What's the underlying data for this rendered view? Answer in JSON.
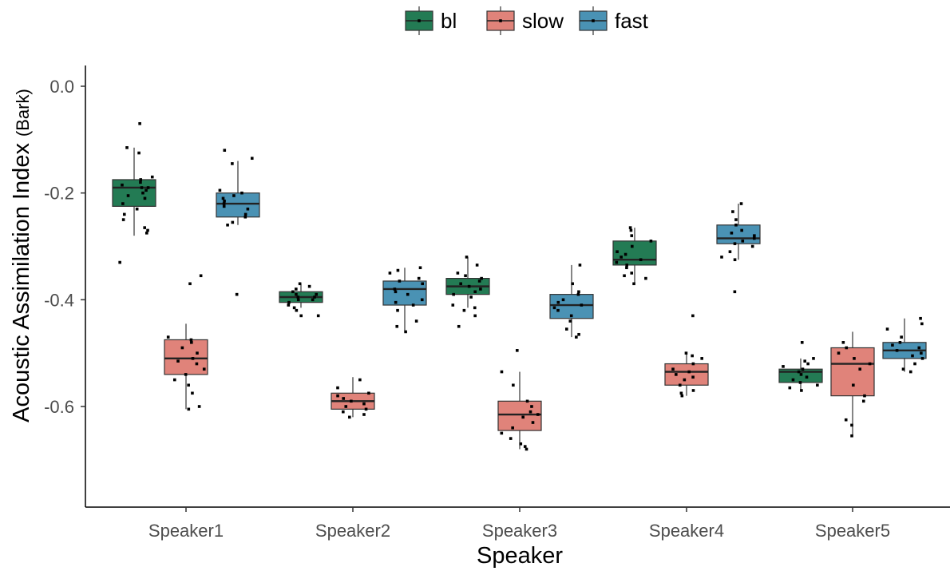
{
  "chart_data": {
    "type": "boxplot",
    "xlabel": "Speaker",
    "ylabel": "Acoustic Assimilation Index",
    "ylabel_unit": "(Bark)",
    "ylim": [
      -0.78,
      0.04
    ],
    "yticks": [
      0.0,
      -0.2,
      -0.4,
      -0.6
    ],
    "ytick_labels": [
      "0.0",
      "-0.2",
      "-0.4",
      "-0.6"
    ],
    "categories": [
      "Speaker1",
      "Speaker2",
      "Speaker3",
      "Speaker4",
      "Speaker5"
    ],
    "legend": {
      "position": "top",
      "entries": [
        "bl",
        "slow",
        "fast"
      ]
    },
    "colors": {
      "bl": "#237b54",
      "slow": "#e0837a",
      "fast": "#4a92b4"
    },
    "grid": false,
    "series": [
      {
        "name": "bl",
        "boxes": [
          {
            "category": "Speaker1",
            "min": -0.28,
            "q1": -0.225,
            "median": -0.19,
            "q3": -0.175,
            "max": -0.115,
            "points": [
              -0.07,
              -0.115,
              -0.125,
              -0.17,
              -0.175,
              -0.18,
              -0.185,
              -0.19,
              -0.19,
              -0.195,
              -0.2,
              -0.205,
              -0.21,
              -0.22,
              -0.23,
              -0.24,
              -0.25,
              -0.265,
              -0.27,
              -0.275,
              -0.33
            ]
          },
          {
            "category": "Speaker2",
            "min": -0.415,
            "q1": -0.405,
            "median": -0.395,
            "q3": -0.385,
            "max": -0.37,
            "points": [
              -0.37,
              -0.375,
              -0.38,
              -0.385,
              -0.39,
              -0.39,
              -0.395,
              -0.395,
              -0.4,
              -0.4,
              -0.405,
              -0.41,
              -0.415,
              -0.42,
              -0.43,
              -0.43
            ]
          },
          {
            "category": "Speaker3",
            "min": -0.415,
            "q1": -0.39,
            "median": -0.375,
            "q3": -0.36,
            "max": -0.32,
            "points": [
              -0.32,
              -0.335,
              -0.35,
              -0.355,
              -0.36,
              -0.365,
              -0.37,
              -0.375,
              -0.38,
              -0.385,
              -0.39,
              -0.395,
              -0.41,
              -0.415,
              -0.42,
              -0.43,
              -0.45
            ]
          },
          {
            "category": "Speaker4",
            "min": -0.37,
            "q1": -0.335,
            "median": -0.325,
            "q3": -0.29,
            "max": -0.265,
            "points": [
              -0.265,
              -0.27,
              -0.28,
              -0.29,
              -0.3,
              -0.31,
              -0.315,
              -0.32,
              -0.325,
              -0.33,
              -0.335,
              -0.34,
              -0.35,
              -0.355,
              -0.36,
              -0.37
            ]
          },
          {
            "category": "Speaker5",
            "min": -0.57,
            "q1": -0.555,
            "median": -0.535,
            "q3": -0.53,
            "max": -0.51,
            "points": [
              -0.48,
              -0.51,
              -0.515,
              -0.52,
              -0.525,
              -0.53,
              -0.535,
              -0.54,
              -0.545,
              -0.55,
              -0.555,
              -0.56,
              -0.565,
              -0.57
            ]
          }
        ]
      },
      {
        "name": "slow",
        "boxes": [
          {
            "category": "Speaker1",
            "min": -0.605,
            "q1": -0.54,
            "median": -0.51,
            "q3": -0.475,
            "max": -0.445,
            "points": [
              -0.355,
              -0.37,
              -0.47,
              -0.475,
              -0.48,
              -0.49,
              -0.5,
              -0.51,
              -0.515,
              -0.52,
              -0.53,
              -0.54,
              -0.55,
              -0.56,
              -0.575,
              -0.6,
              -0.605
            ]
          },
          {
            "category": "Speaker2",
            "min": -0.62,
            "q1": -0.605,
            "median": -0.59,
            "q3": -0.575,
            "max": -0.545,
            "points": [
              -0.55,
              -0.565,
              -0.575,
              -0.58,
              -0.585,
              -0.59,
              -0.595,
              -0.6,
              -0.605,
              -0.61,
              -0.615,
              -0.62
            ]
          },
          {
            "category": "Speaker3",
            "min": -0.68,
            "q1": -0.645,
            "median": -0.615,
            "q3": -0.59,
            "max": -0.535,
            "points": [
              -0.495,
              -0.535,
              -0.56,
              -0.59,
              -0.6,
              -0.61,
              -0.615,
              -0.62,
              -0.63,
              -0.64,
              -0.65,
              -0.66,
              -0.67,
              -0.675,
              -0.68
            ]
          },
          {
            "category": "Speaker4",
            "min": -0.58,
            "q1": -0.56,
            "median": -0.535,
            "q3": -0.52,
            "max": -0.5,
            "points": [
              -0.43,
              -0.5,
              -0.505,
              -0.51,
              -0.52,
              -0.53,
              -0.535,
              -0.54,
              -0.545,
              -0.55,
              -0.56,
              -0.57,
              -0.575,
              -0.58
            ]
          },
          {
            "category": "Speaker5",
            "min": -0.655,
            "q1": -0.58,
            "median": -0.52,
            "q3": -0.49,
            "max": -0.46,
            "points": [
              -0.48,
              -0.49,
              -0.5,
              -0.51,
              -0.52,
              -0.53,
              -0.56,
              -0.58,
              -0.59,
              -0.625,
              -0.635,
              -0.655
            ]
          }
        ]
      },
      {
        "name": "fast",
        "boxes": [
          {
            "category": "Speaker1",
            "min": -0.26,
            "q1": -0.245,
            "median": -0.22,
            "q3": -0.2,
            "max": -0.14,
            "points": [
              -0.12,
              -0.135,
              -0.145,
              -0.195,
              -0.2,
              -0.205,
              -0.21,
              -0.215,
              -0.22,
              -0.225,
              -0.23,
              -0.24,
              -0.245,
              -0.255,
              -0.26,
              -0.39
            ]
          },
          {
            "category": "Speaker2",
            "min": -0.46,
            "q1": -0.41,
            "median": -0.38,
            "q3": -0.365,
            "max": -0.34,
            "points": [
              -0.34,
              -0.345,
              -0.35,
              -0.36,
              -0.365,
              -0.37,
              -0.38,
              -0.385,
              -0.39,
              -0.4,
              -0.405,
              -0.41,
              -0.42,
              -0.44,
              -0.45,
              -0.46
            ]
          },
          {
            "category": "Speaker3",
            "min": -0.47,
            "q1": -0.435,
            "median": -0.41,
            "q3": -0.39,
            "max": -0.335,
            "points": [
              -0.335,
              -0.37,
              -0.385,
              -0.39,
              -0.4,
              -0.405,
              -0.41,
              -0.415,
              -0.42,
              -0.43,
              -0.44,
              -0.455,
              -0.465,
              -0.47
            ]
          },
          {
            "category": "Speaker4",
            "min": -0.325,
            "q1": -0.295,
            "median": -0.285,
            "q3": -0.26,
            "max": -0.22,
            "points": [
              -0.22,
              -0.235,
              -0.25,
              -0.26,
              -0.27,
              -0.275,
              -0.28,
              -0.285,
              -0.29,
              -0.295,
              -0.3,
              -0.31,
              -0.32,
              -0.325,
              -0.385
            ]
          },
          {
            "category": "Speaker5",
            "min": -0.535,
            "q1": -0.51,
            "median": -0.495,
            "q3": -0.48,
            "max": -0.435,
            "points": [
              -0.435,
              -0.445,
              -0.455,
              -0.47,
              -0.48,
              -0.485,
              -0.49,
              -0.495,
              -0.5,
              -0.505,
              -0.51,
              -0.52,
              -0.53,
              -0.535
            ]
          }
        ]
      }
    ]
  }
}
